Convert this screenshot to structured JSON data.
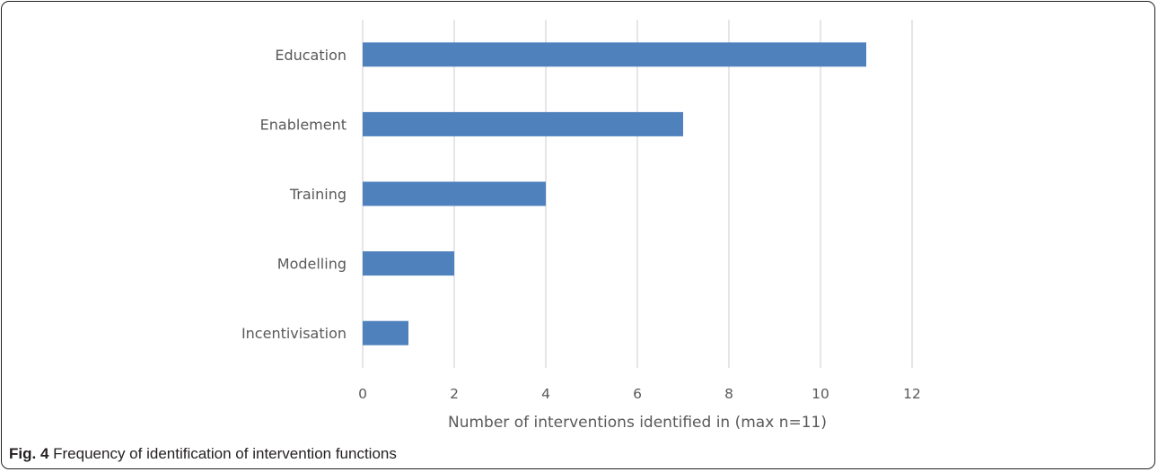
{
  "figure": {
    "caption_number": "Fig. 4",
    "caption_text": "Frequency of identification of intervention functions"
  },
  "chart_data": {
    "type": "bar",
    "orientation": "horizontal",
    "categories": [
      "Education",
      "Enablement",
      "Training",
      "Modelling",
      "Incentivisation"
    ],
    "values": [
      11,
      7,
      4,
      2,
      1
    ],
    "xlabel": "Number of interventions identified in (max n=11)",
    "ylabel": "",
    "xlim": [
      0,
      12
    ],
    "xticks": [
      0,
      2,
      4,
      6,
      8,
      10,
      12
    ],
    "grid": "vertical",
    "legend": "none",
    "bar_color": "#4f81bd",
    "gridline_color": "#d9d9d9",
    "text_color": "#595959"
  }
}
